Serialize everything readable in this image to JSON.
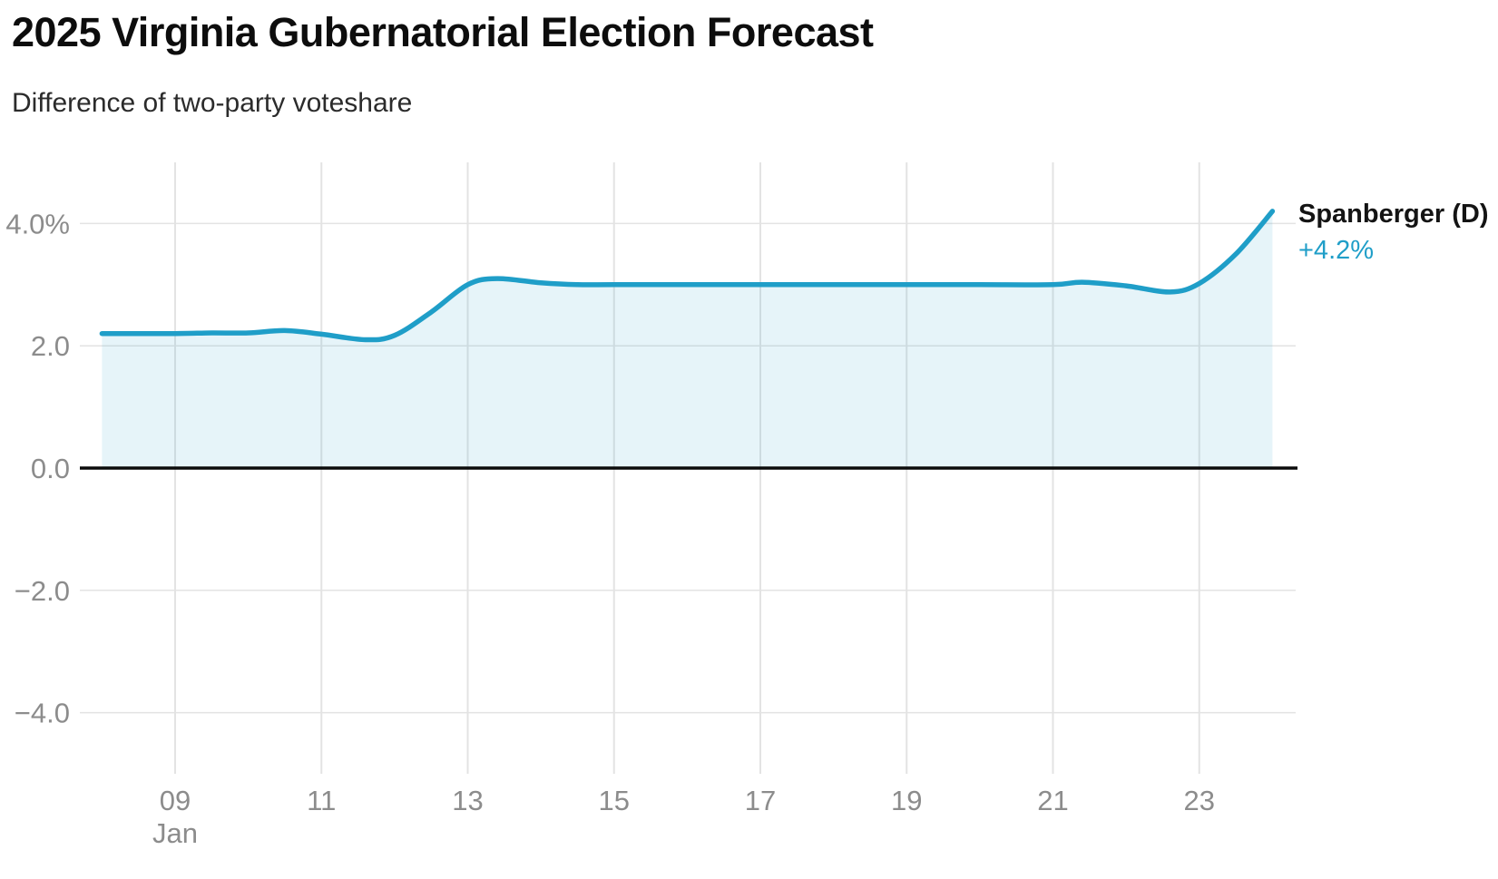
{
  "chart_data": {
    "type": "area",
    "title": "2025 Virginia Gubernatorial Election Forecast",
    "subtitle": "Difference of two-party voteshare",
    "x_unit": "day of January 2025",
    "xlim_days": [
      8,
      24
    ],
    "ylim_percent": [
      -5,
      5
    ],
    "grid": true,
    "legend_position": "end-of-line-label",
    "y_ticks": [
      {
        "value": 4,
        "label": "4.0%"
      },
      {
        "value": 2,
        "label": "2.0"
      },
      {
        "value": 0,
        "label": "0.0"
      },
      {
        "value": -2,
        "label": "−2.0"
      },
      {
        "value": -4,
        "label": "−4.0"
      }
    ],
    "x_ticks": [
      {
        "day": 9,
        "label": "09"
      },
      {
        "day": 11,
        "label": "11"
      },
      {
        "day": 13,
        "label": "13"
      },
      {
        "day": 15,
        "label": "15"
      },
      {
        "day": 17,
        "label": "17"
      },
      {
        "day": 19,
        "label": "19"
      },
      {
        "day": 21,
        "label": "21"
      },
      {
        "day": 23,
        "label": "23"
      }
    ],
    "month_label": {
      "day": 9,
      "label": "Jan"
    },
    "series": [
      {
        "name": "Spanberger (D)",
        "points": [
          [
            8,
            2.2
          ],
          [
            8.5,
            2.2
          ],
          [
            9,
            2.2
          ],
          [
            9.5,
            2.21
          ],
          [
            10,
            2.21
          ],
          [
            10.5,
            2.25
          ],
          [
            11,
            2.19
          ],
          [
            11.6,
            2.1
          ],
          [
            12,
            2.17
          ],
          [
            12.5,
            2.55
          ],
          [
            13,
            3.0
          ],
          [
            13.4,
            3.1
          ],
          [
            14,
            3.03
          ],
          [
            14.5,
            3.0
          ],
          [
            15,
            3.0
          ],
          [
            16,
            3.0
          ],
          [
            17,
            3.0
          ],
          [
            18,
            3.0
          ],
          [
            19,
            3.0
          ],
          [
            20,
            3.0
          ],
          [
            21,
            3.0
          ],
          [
            21.4,
            3.04
          ],
          [
            22,
            2.98
          ],
          [
            22.6,
            2.88
          ],
          [
            23,
            3.02
          ],
          [
            23.5,
            3.5
          ],
          [
            24,
            4.2
          ]
        ]
      }
    ],
    "end_label": {
      "candidate": "Spanberger (D)",
      "value": "+4.2%"
    }
  },
  "colors": {
    "line": "#1f9ec8",
    "area_fill_opacity": "0.11",
    "grid": "#e3e3e3",
    "zero_line": "#0b0b0b",
    "tick_text": "#8c8c8c",
    "end_label_value": "#1f9ec8"
  }
}
